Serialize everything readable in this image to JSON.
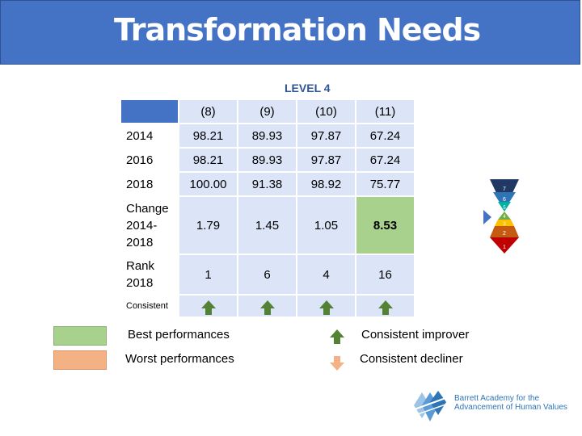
{
  "title": "Transformation Needs",
  "level_label": "LEVEL 4",
  "columns": [
    "(8)",
    "(9)",
    "(10)",
    "(11)"
  ],
  "rows": [
    {
      "label": "2014",
      "values": [
        "98.21",
        "89.93",
        "97.87",
        "67.24"
      ]
    },
    {
      "label": "2016",
      "values": [
        "98.21",
        "89.93",
        "97.87",
        "67.24"
      ]
    },
    {
      "label": "2018",
      "values": [
        "100.00",
        "91.38",
        "98.92",
        "75.77"
      ]
    },
    {
      "label": "Change 2014-2018",
      "values": [
        "1.79",
        "1.45",
        "1.05",
        "8.53"
      ]
    },
    {
      "label": "Rank 2018",
      "values": [
        "1",
        "6",
        "4",
        "16"
      ]
    }
  ],
  "consistent_label": "Consistent",
  "legend": {
    "best": "Best performances",
    "worst": "Worst performances",
    "improver": "Consistent improver",
    "decliner": "Consistent decliner"
  },
  "spiral_levels": [
    "7",
    "6",
    "5",
    "4",
    "3",
    "2",
    "1"
  ],
  "logo": {
    "line1": "Barrett Academy for the",
    "line2": "Advancement of Human Values"
  },
  "colors": {
    "header_blue": "#4472c4",
    "cell_blue": "#dbe5f7",
    "best_green": "#a9d18e",
    "worst_orange": "#f4b183",
    "arrow_green": "#548235"
  }
}
